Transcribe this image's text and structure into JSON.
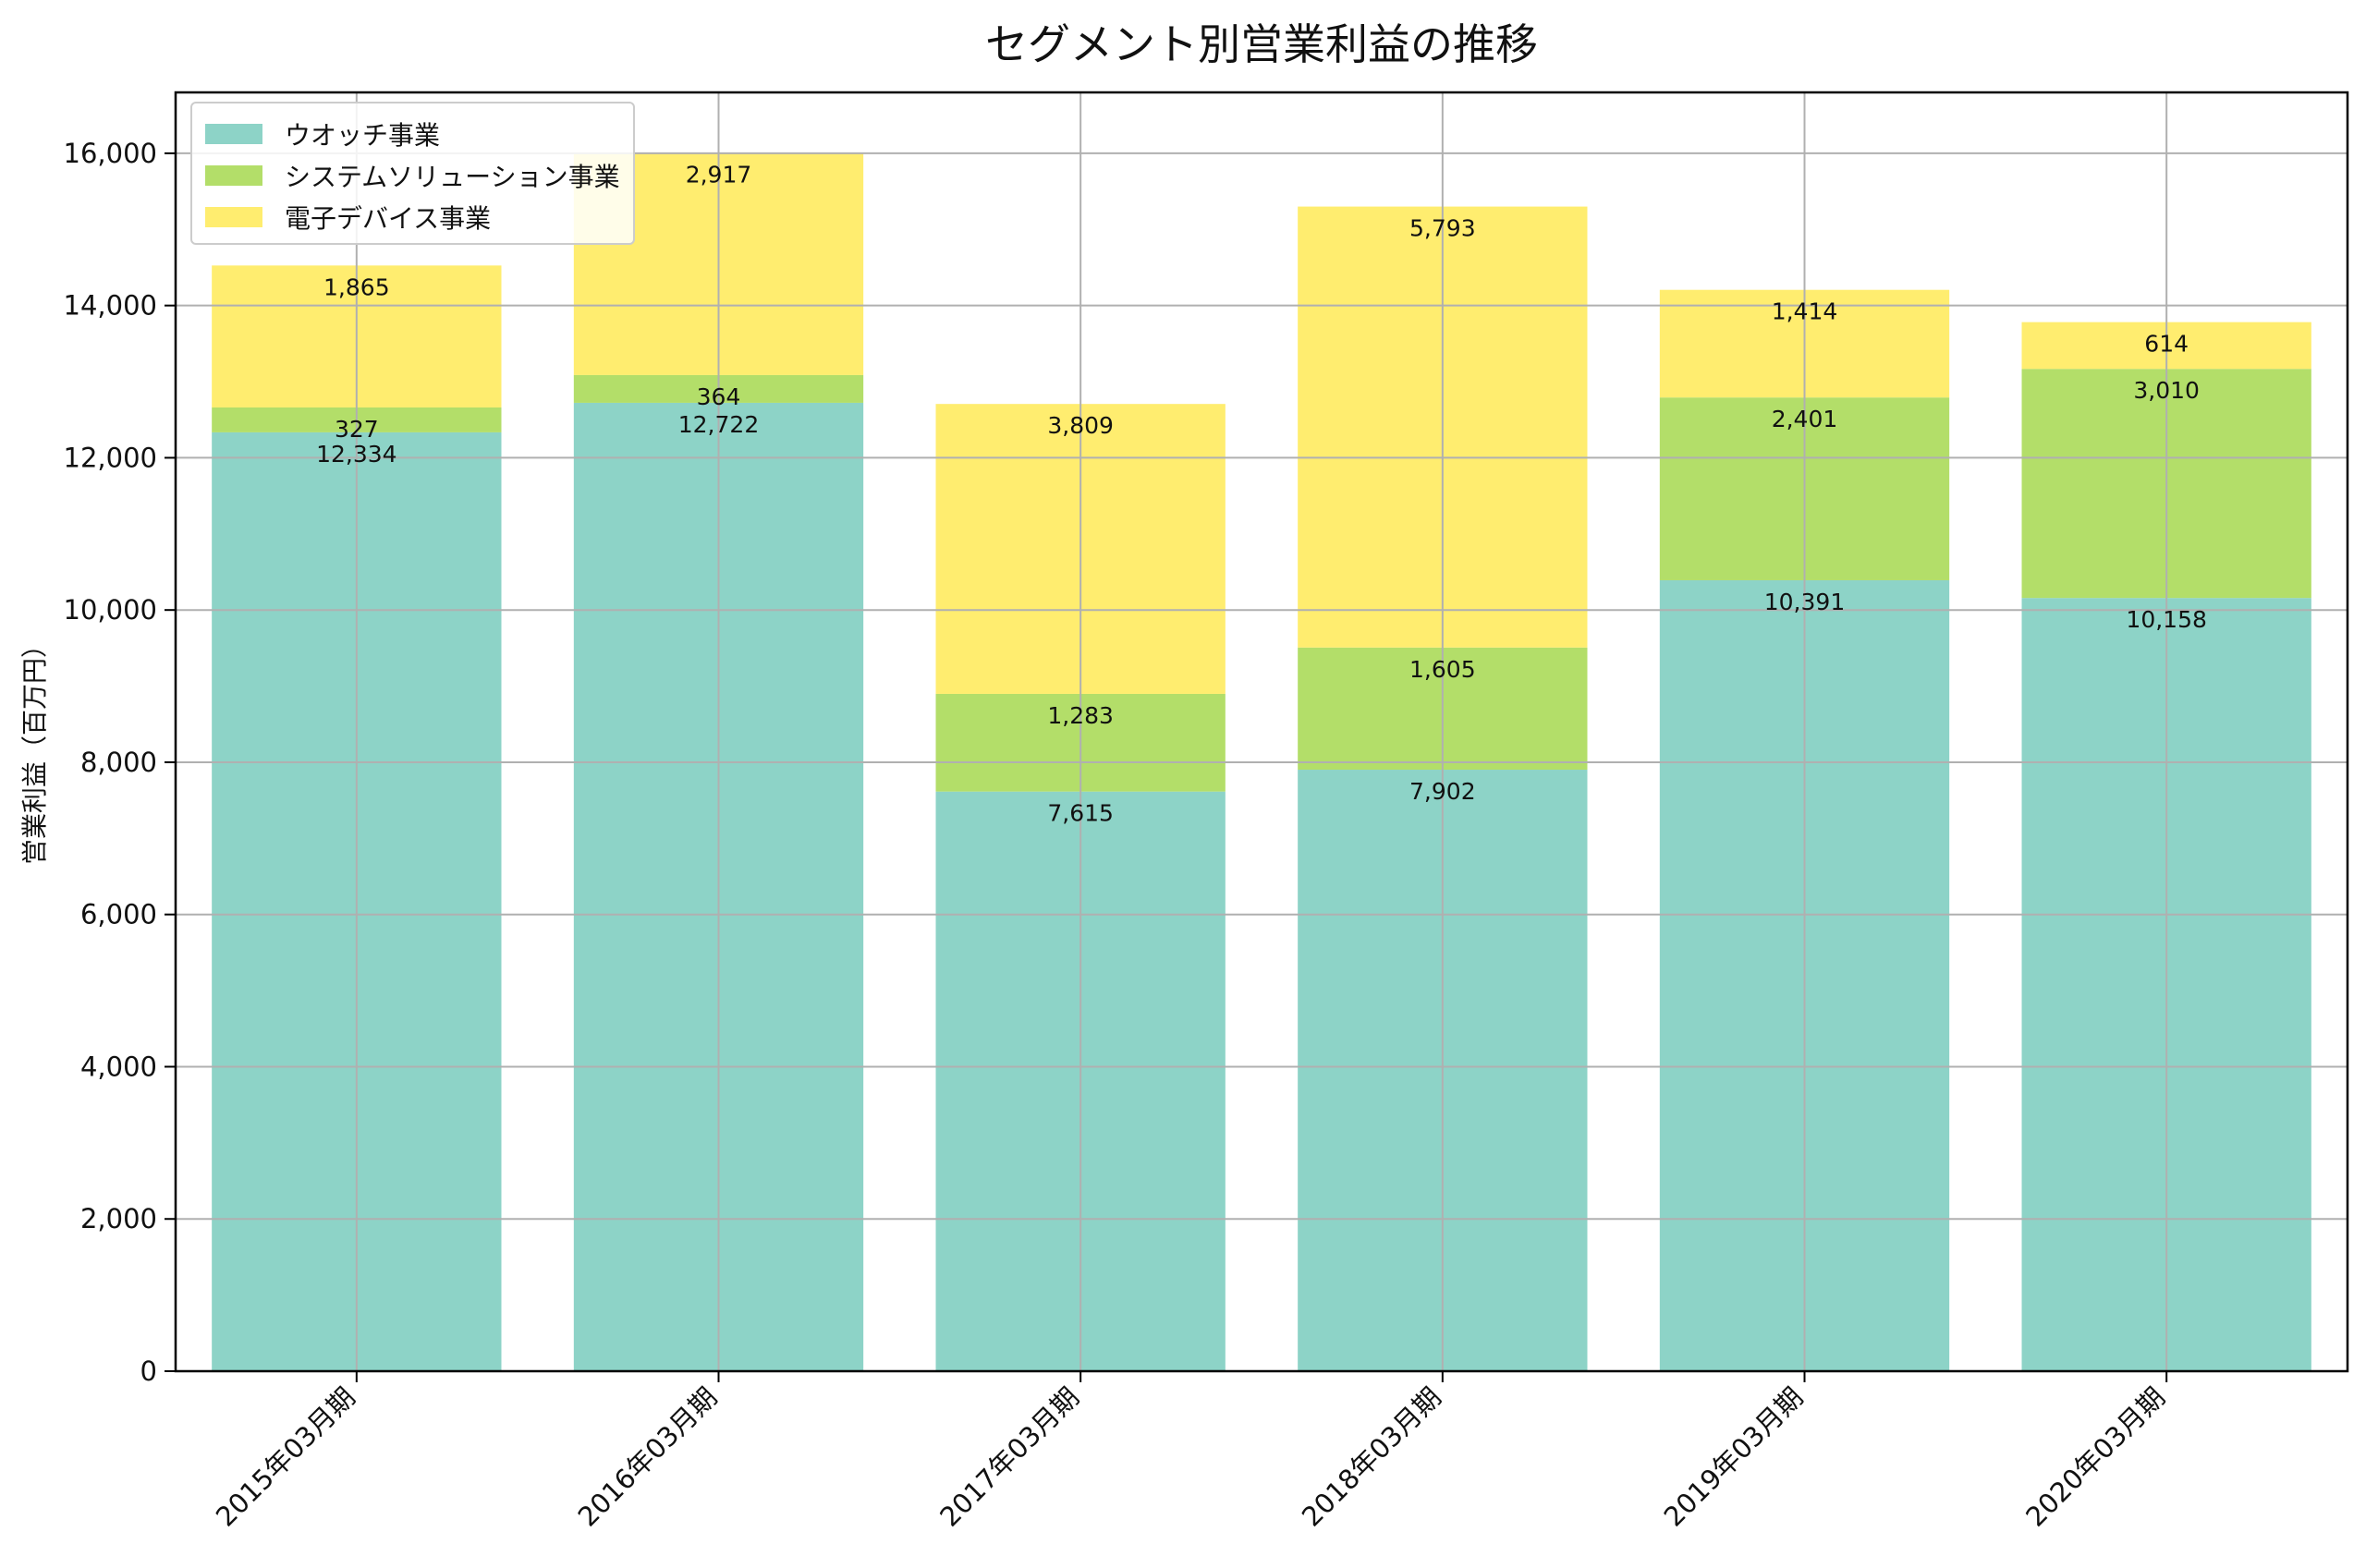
{
  "chart_data": {
    "type": "bar",
    "stacked": true,
    "title": "セグメント別営業利益の推移",
    "xlabel": "",
    "ylabel": "営業利益（百万円）",
    "ylim": [
      0,
      16800
    ],
    "yticks": [
      0,
      2000,
      4000,
      6000,
      8000,
      10000,
      12000,
      14000,
      16000
    ],
    "ytick_labels": [
      "0",
      "2,000",
      "4,000",
      "6,000",
      "8,000",
      "10,000",
      "12,000",
      "14,000",
      "16,000"
    ],
    "grid": true,
    "legend_position": "top-left",
    "categories": [
      "2015年03月期",
      "2016年03月期",
      "2017年03月期",
      "2018年03月期",
      "2019年03月期",
      "2020年03月期"
    ],
    "series": [
      {
        "name": "ウオッチ事業",
        "color": "#8dd3c7",
        "values": [
          12334,
          12722,
          7615,
          7902,
          10391,
          10158
        ]
      },
      {
        "name": "システムソリューション事業",
        "color": "#b3de69",
        "values": [
          327,
          364,
          1283,
          1605,
          2401,
          3010
        ]
      },
      {
        "name": "電子デバイス事業",
        "color": "#ffed6f",
        "values": [
          1865,
          2917,
          3809,
          5793,
          1414,
          614
        ]
      }
    ]
  }
}
